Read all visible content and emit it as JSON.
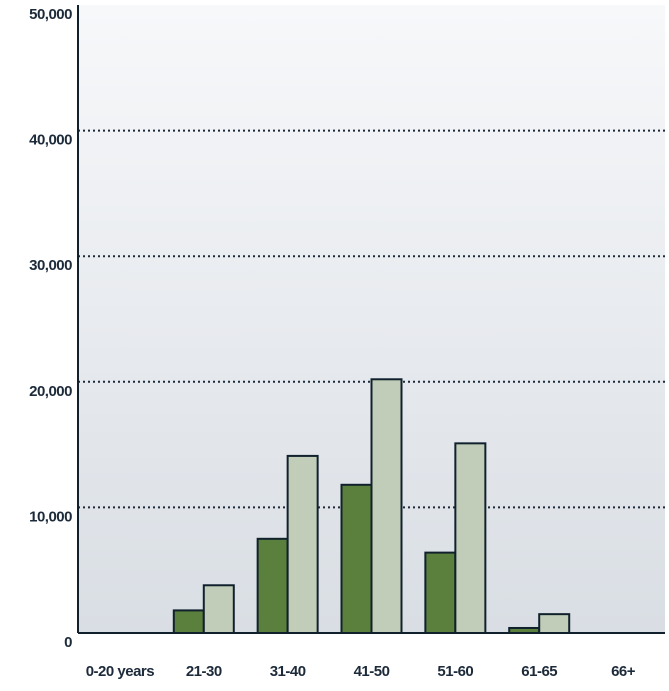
{
  "chart_data": {
    "type": "bar",
    "categories": [
      "0-20 years",
      "21-30",
      "31-40",
      "41-50",
      "51-60",
      "61-65",
      "66+"
    ],
    "series": [
      {
        "color": "#5b7f3c",
        "values": [
          0,
          1800,
          7500,
          11800,
          6400,
          400,
          0
        ]
      },
      {
        "color": "#c2cdb9",
        "values": [
          0,
          3800,
          14100,
          20200,
          15100,
          1500,
          0
        ]
      }
    ],
    "ylim": [
      0,
      50000
    ],
    "yticks": [
      0,
      {
        "value": 10000,
        "label": "10,000"
      },
      {
        "value": 20000,
        "label": "20,000"
      },
      {
        "value": 30000,
        "label": "30,000"
      },
      {
        "value": 40000,
        "label": "40,000"
      },
      {
        "value": 50000,
        "label": "50,000"
      }
    ],
    "grid": true
  }
}
